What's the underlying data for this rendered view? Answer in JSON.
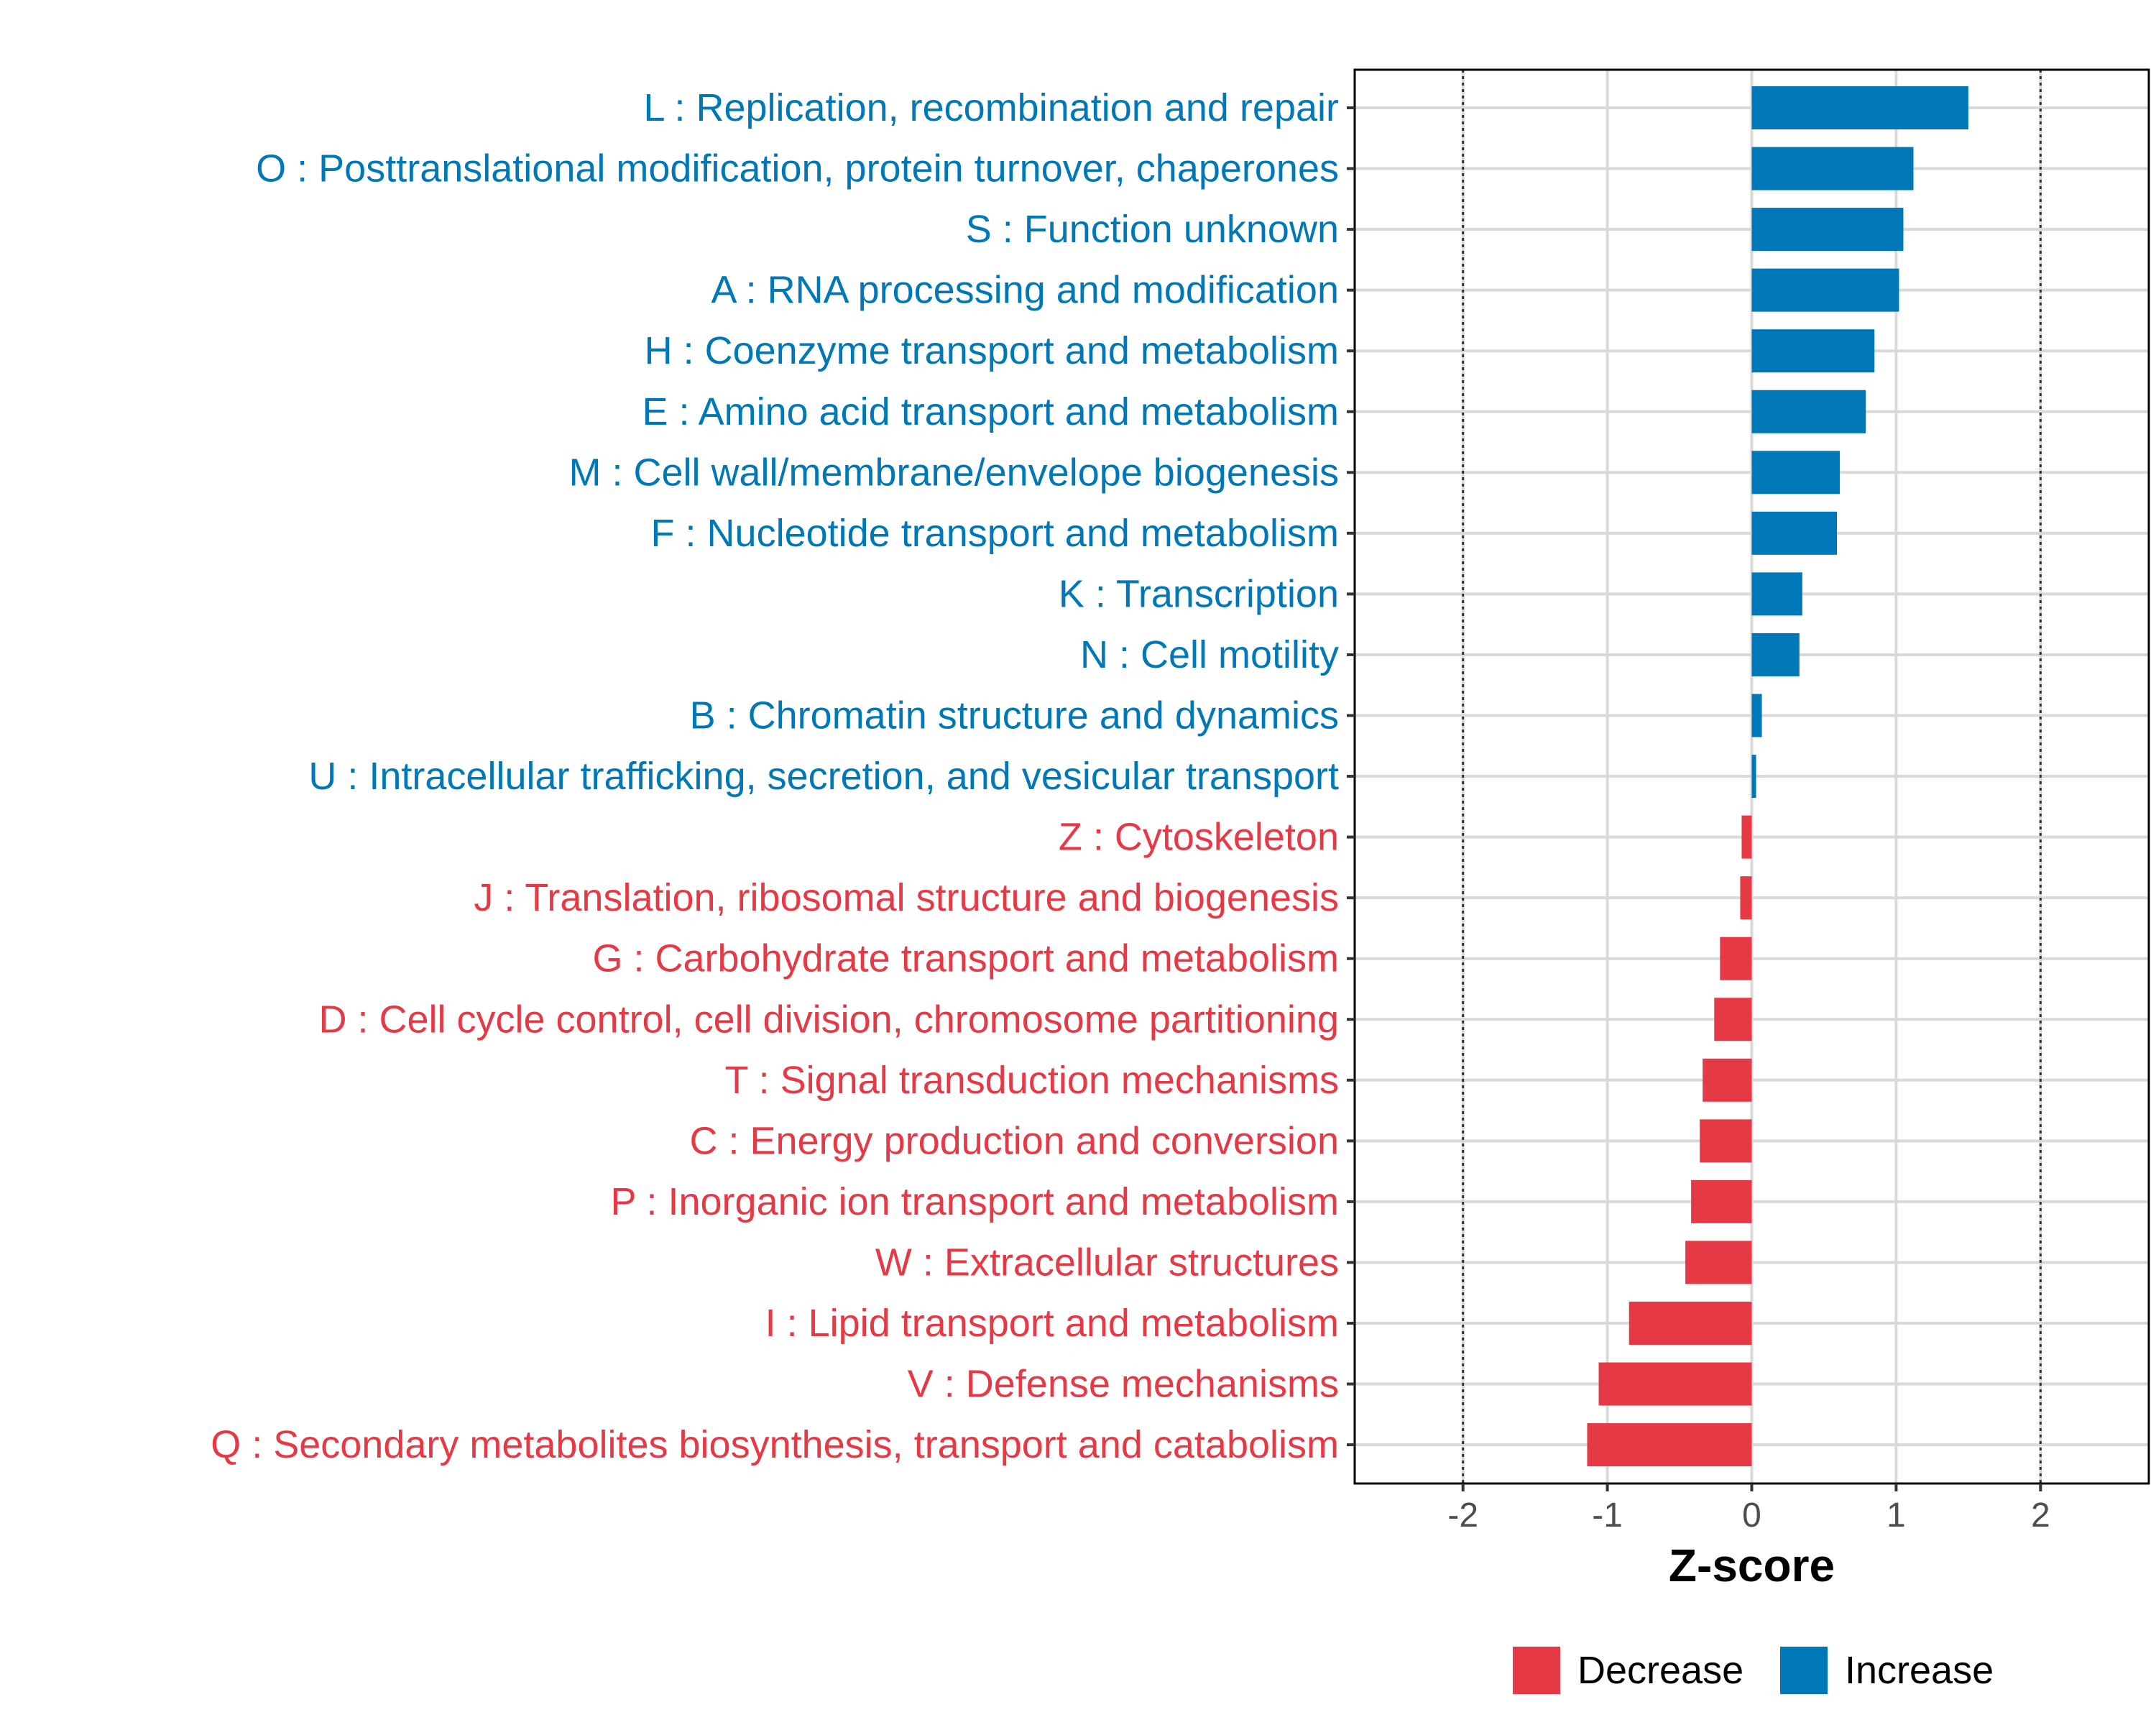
{
  "chart_data": {
    "type": "bar",
    "orientation": "horizontal",
    "xlabel": "Z-score",
    "xlim": [
      -2.75,
      2.75
    ],
    "xticks": [
      -2,
      -1,
      0,
      1,
      2
    ],
    "xtick_labels": [
      "-2",
      "-1",
      "0",
      "1",
      "2"
    ],
    "reference_lines": [
      -2,
      2
    ],
    "grid": true,
    "categories": [
      "L : Replication, recombination and repair",
      "O : Posttranslational modification, protein turnover, chaperones",
      "S : Function unknown",
      "A : RNA processing and modification",
      "H : Coenzyme transport and metabolism",
      "E : Amino acid transport and metabolism",
      "M : Cell wall/membrane/envelope biogenesis",
      "F : Nucleotide transport and metabolism",
      "K : Transcription",
      "N : Cell motility",
      "B : Chromatin structure and dynamics",
      "U : Intracellular trafficking, secretion, and vesicular transport",
      "Z : Cytoskeleton",
      "J : Translation, ribosomal structure and biogenesis",
      "G : Carbohydrate transport and metabolism",
      "D : Cell cycle control, cell division, chromosome partitioning",
      "T : Signal transduction mechanisms",
      "C : Energy production and conversion",
      "P : Inorganic ion transport and metabolism",
      "W : Extracellular structures",
      "I : Lipid transport and metabolism",
      "V : Defense mechanisms",
      "Q : Secondary metabolites biosynthesis, transport and catabolism"
    ],
    "values": [
      1.5,
      1.12,
      1.05,
      1.02,
      0.85,
      0.79,
      0.61,
      0.59,
      0.35,
      0.33,
      0.07,
      0.03,
      -0.07,
      -0.08,
      -0.22,
      -0.26,
      -0.34,
      -0.36,
      -0.42,
      -0.46,
      -0.85,
      -1.06,
      -1.14
    ],
    "groups": [
      "Increase",
      "Increase",
      "Increase",
      "Increase",
      "Increase",
      "Increase",
      "Increase",
      "Increase",
      "Increase",
      "Increase",
      "Increase",
      "Increase",
      "Decrease",
      "Decrease",
      "Decrease",
      "Decrease",
      "Decrease",
      "Decrease",
      "Decrease",
      "Decrease",
      "Decrease",
      "Decrease",
      "Decrease"
    ],
    "legend": {
      "position": "bottom-right",
      "items": [
        {
          "label": "Decrease",
          "color": "#e63946"
        },
        {
          "label": "Increase",
          "color": "#0077b6"
        }
      ]
    },
    "colors": {
      "Decrease": "#e63946",
      "Increase": "#0077b6"
    }
  }
}
